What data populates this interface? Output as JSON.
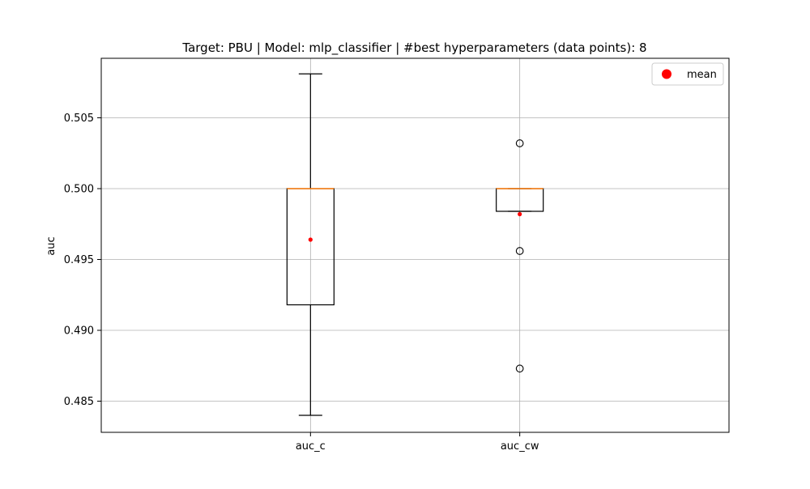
{
  "chart_data": {
    "type": "box",
    "title": "Target: PBU | Model: mlp_classifier | #best hyperparameters (data points): 8",
    "xlabel": "",
    "ylabel": "auc",
    "categories": [
      "auc_c",
      "auc_cw"
    ],
    "ylim": [
      0.4828,
      0.5092
    ],
    "yticks": [
      0.485,
      0.49,
      0.495,
      0.5,
      0.505
    ],
    "ytick_labels": [
      "0.485",
      "0.490",
      "0.495",
      "0.500",
      "0.505"
    ],
    "grid": true,
    "legend": {
      "position": "top-right",
      "entries": [
        {
          "label": "mean",
          "color": "#ff0000",
          "marker": "circle"
        }
      ]
    },
    "boxes": [
      {
        "category": "auc_c",
        "whisker_low": 0.484,
        "q1": 0.4918,
        "median": 0.5,
        "q3": 0.5,
        "whisker_high": 0.5081,
        "mean": 0.4964,
        "outliers": []
      },
      {
        "category": "auc_cw",
        "whisker_low": 0.4984,
        "q1": 0.4984,
        "median": 0.5,
        "q3": 0.5,
        "whisker_high": 0.5,
        "mean": 0.4982,
        "outliers": [
          0.5032,
          0.4956,
          0.4873
        ]
      }
    ],
    "colors": {
      "box": "#000000",
      "median": "#ff7f0e",
      "mean": "#ff0000",
      "grid": "#b0b0b0",
      "outlier_edge": "#000000"
    }
  }
}
